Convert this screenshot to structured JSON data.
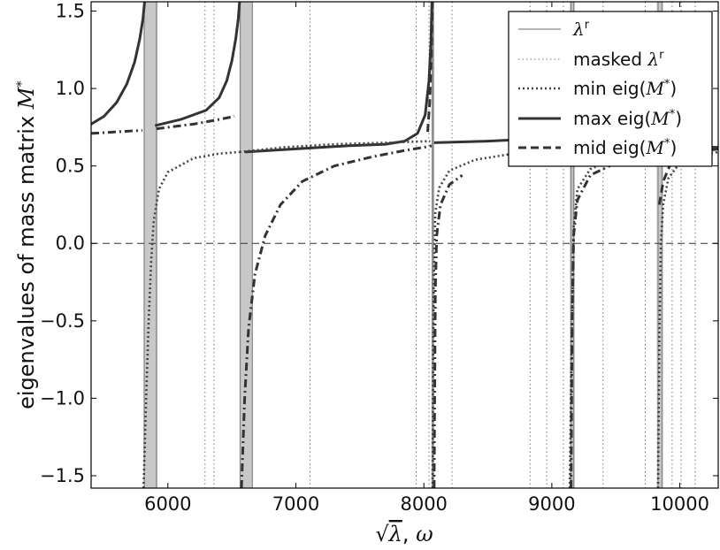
{
  "chart_data": {
    "type": "line",
    "title": "",
    "xlabel_parts": {
      "sqrt_symbol": "√",
      "lambda": "λ",
      "sep": ", ",
      "omega": "ω"
    },
    "ylabel_parts": {
      "text": "eigenvalues of mass matrix ",
      "symbol": "M",
      "sup": "*"
    },
    "xlim": [
      5400,
      10300
    ],
    "ylim": [
      -1.58,
      1.56
    ],
    "x_ticks": [
      6000,
      7000,
      8000,
      9000,
      10000
    ],
    "y_ticks": [
      -1.5,
      -1.0,
      -0.5,
      0.0,
      0.5,
      1.0,
      1.5
    ],
    "x_tick_labels": [
      "6000",
      "7000",
      "8000",
      "9000",
      "10000"
    ],
    "y_tick_labels": [
      "−1.5",
      "−1.0",
      "−0.5",
      "0.0",
      "0.5",
      "1.0",
      "1.5"
    ],
    "legend_position": "top-right",
    "zero_line": 0.0,
    "lambda_r_bands": [
      [
        5810,
        5920
      ],
      [
        6560,
        6660
      ],
      [
        8060,
        8080
      ],
      [
        9140,
        9180
      ],
      [
        9820,
        9870
      ]
    ],
    "lambda_r_lines": [
      5815,
      5910,
      6565,
      6660,
      8065,
      8075,
      9150,
      9170,
      9830,
      9860
    ],
    "masked_lambda_r": [
      6290,
      6360,
      7110,
      7940,
      8040,
      8220,
      8830,
      8960,
      9090,
      9400,
      9730,
      9940,
      10010,
      10120
    ],
    "legend": [
      {
        "key": "lambda_r",
        "style": "solid-thin",
        "label_text": "",
        "symbol": "λ",
        "sup": "r",
        "suffix": ""
      },
      {
        "key": "masked",
        "style": "dotted-thin",
        "label_text": "masked ",
        "symbol": "λ",
        "sup": "r",
        "suffix": ""
      },
      {
        "key": "min",
        "style": "dotted-thick",
        "label_text": "min eig(",
        "symbol": "M",
        "sup": "*",
        "suffix": ")"
      },
      {
        "key": "max",
        "style": "solid-thick",
        "label_text": "max eig(",
        "symbol": "M",
        "sup": "*",
        "suffix": ")"
      },
      {
        "key": "mid",
        "style": "dashed-thick",
        "label_text": "mid eig(",
        "symbol": "M",
        "sup": "*",
        "suffix": ")"
      }
    ],
    "series": [
      {
        "name": "max eig(M*)",
        "style": "solid-thick",
        "segments": [
          [
            [
              5400,
              0.77
            ],
            [
              5500,
              0.82
            ],
            [
              5600,
              0.91
            ],
            [
              5680,
              1.03
            ],
            [
              5740,
              1.17
            ],
            [
              5780,
              1.32
            ],
            [
              5805,
              1.45
            ],
            [
              5818,
              1.56
            ]
          ],
          [
            [
              5900,
              0.76
            ],
            [
              6000,
              0.78
            ],
            [
              6100,
              0.8
            ],
            [
              6200,
              0.83
            ],
            [
              6300,
              0.86
            ],
            [
              6400,
              0.94
            ],
            [
              6460,
              1.05
            ],
            [
              6500,
              1.18
            ],
            [
              6530,
              1.32
            ],
            [
              6550,
              1.45
            ],
            [
              6560,
              1.56
            ]
          ],
          [
            [
              6600,
              0.59
            ],
            [
              7000,
              0.61
            ],
            [
              7400,
              0.63
            ],
            [
              7700,
              0.64
            ],
            [
              7850,
              0.66
            ],
            [
              7950,
              0.71
            ],
            [
              8010,
              0.83
            ],
            [
              8040,
              1.05
            ],
            [
              8055,
              1.3
            ],
            [
              8063,
              1.56
            ]
          ],
          [
            [
              8080,
              0.65
            ],
            [
              8500,
              0.66
            ],
            [
              9000,
              0.68
            ],
            [
              9100,
              0.7
            ],
            [
              9130,
              0.73
            ]
          ],
          [
            [
              9170,
              0.6
            ],
            [
              9300,
              0.61
            ],
            [
              9500,
              0.62
            ],
            [
              9700,
              0.66
            ],
            [
              9790,
              0.72
            ],
            [
              9815,
              0.78
            ]
          ],
          [
            [
              9880,
              0.6
            ],
            [
              10000,
              0.61
            ],
            [
              10100,
              0.62
            ],
            [
              10300,
              0.62
            ]
          ]
        ]
      },
      {
        "name": "min eig(M*)",
        "style": "dotted-thick",
        "segments": [
          [
            [
              5810,
              -1.58
            ],
            [
              5830,
              -1.0
            ],
            [
              5850,
              -0.5
            ],
            [
              5870,
              -0.1
            ],
            [
              5890,
              0.15
            ],
            [
              5930,
              0.35
            ],
            [
              6000,
              0.46
            ],
            [
              6200,
              0.55
            ],
            [
              6400,
              0.58
            ],
            [
              6560,
              0.59
            ]
          ],
          [
            [
              6560,
              0.59
            ],
            [
              6900,
              0.62
            ],
            [
              7300,
              0.64
            ],
            [
              7700,
              0.65
            ],
            [
              8050,
              0.66
            ]
          ],
          [
            [
              8068,
              -1.58
            ],
            [
              8072,
              -0.8
            ],
            [
              8078,
              -0.2
            ],
            [
              8090,
              0.2
            ],
            [
              8120,
              0.36
            ],
            [
              8200,
              0.47
            ],
            [
              8400,
              0.54
            ],
            [
              8700,
              0.58
            ],
            [
              9100,
              0.6
            ]
          ],
          [
            [
              9140,
              -1.58
            ],
            [
              9155,
              -0.6
            ],
            [
              9170,
              0.1
            ],
            [
              9200,
              0.35
            ],
            [
              9300,
              0.48
            ],
            [
              9500,
              0.55
            ],
            [
              9800,
              0.58
            ]
          ],
          [
            [
              9830,
              -1.58
            ],
            [
              9840,
              -0.6
            ],
            [
              9852,
              0.0
            ],
            [
              9870,
              0.25
            ],
            [
              9910,
              0.42
            ],
            [
              10000,
              0.52
            ],
            [
              10150,
              0.57
            ],
            [
              10300,
              0.59
            ]
          ]
        ]
      },
      {
        "name": "mid eig(M*)",
        "style": "dashed-thick",
        "segments": [
          [
            [
              8030,
              0.72
            ],
            [
              8045,
              0.9
            ],
            [
              8058,
              1.2
            ],
            [
              8066,
              1.56
            ]
          ],
          [
            [
              9840,
              0.25
            ],
            [
              9870,
              0.4
            ],
            [
              9920,
              0.5
            ],
            [
              10000,
              0.55
            ],
            [
              10150,
              0.59
            ],
            [
              10300,
              0.61
            ]
          ]
        ]
      },
      {
        "name": "",
        "style": "dashdot-thick",
        "segments": [
          [
            [
              5400,
              0.71
            ],
            [
              5600,
              0.72
            ],
            [
              5800,
              0.73
            ]
          ],
          [
            [
              5910,
              0.74
            ],
            [
              6200,
              0.77
            ],
            [
              6400,
              0.8
            ],
            [
              6520,
              0.82
            ]
          ],
          [
            [
              6575,
              -1.58
            ],
            [
              6600,
              -1.0
            ],
            [
              6630,
              -0.55
            ],
            [
              6680,
              -0.2
            ],
            [
              6760,
              0.05
            ],
            [
              6880,
              0.25
            ],
            [
              7050,
              0.4
            ],
            [
              7300,
              0.5
            ],
            [
              7600,
              0.56
            ],
            [
              7850,
              0.6
            ],
            [
              8000,
              0.62
            ],
            [
              8060,
              0.63
            ]
          ],
          [
            [
              8080,
              -1.58
            ],
            [
              8085,
              -0.9
            ],
            [
              8090,
              -0.3
            ],
            [
              8100,
              0.05
            ],
            [
              8130,
              0.25
            ],
            [
              8200,
              0.38
            ],
            [
              8300,
              0.44
            ]
          ],
          [
            [
              9150,
              -1.58
            ],
            [
              9158,
              -0.5
            ],
            [
              9170,
              0.05
            ],
            [
              9200,
              0.28
            ],
            [
              9300,
              0.44
            ],
            [
              9500,
              0.52
            ],
            [
              9700,
              0.56
            ],
            [
              9800,
              0.57
            ]
          ],
          [
            [
              9820,
              0.58
            ],
            [
              9830,
              0.6
            ]
          ]
        ]
      }
    ]
  }
}
